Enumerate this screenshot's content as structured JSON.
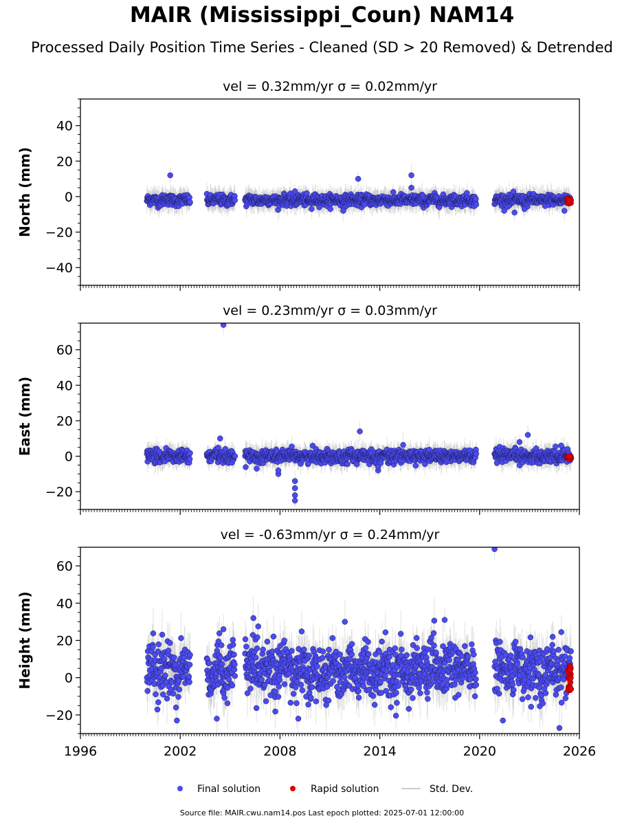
{
  "title": "MAIR (Mississippi_Coun) NAM14",
  "subtitle": "Processed Daily Position Time Series - Cleaned (SD > 20 Removed) & Detrended",
  "footer": "Source file: MAIR.cwu.nam14.pos  Last epoch plotted: 2025-07-01 12:00:00",
  "colors": {
    "final": "#4b4bef",
    "rapid": "#e00000",
    "std": "#aaaaaa"
  },
  "chart_data": [
    {
      "type": "scatter",
      "panel_title": "vel = 0.32mm/yr   σ = 0.02mm/yr",
      "ylabel": "North (mm)",
      "xlim": [
        1996,
        2026
      ],
      "ylim": [
        -50,
        55
      ],
      "yticks": [
        -40,
        -20,
        0,
        20,
        40
      ],
      "xticks": [
        1996,
        2002,
        2008,
        2014,
        2020,
        2026
      ],
      "show_xtick_labels": false,
      "coverage": [
        [
          2000.0,
          2002.6
        ],
        [
          2003.6,
          2005.3
        ],
        [
          2005.9,
          2019.8
        ],
        [
          2020.9,
          2025.5
        ]
      ],
      "noise_sd": 1.5,
      "noise_mean": -2,
      "outliers": [
        [
          2001.4,
          12
        ],
        [
          2012.7,
          10
        ],
        [
          2015.9,
          12
        ],
        [
          2015.9,
          5
        ],
        [
          2011.8,
          -8
        ],
        [
          2022.1,
          -9
        ],
        [
          2022.7,
          -7
        ],
        [
          2009.9,
          -7
        ],
        [
          2008.9,
          3
        ],
        [
          2025.1,
          -8
        ]
      ],
      "rapid": {
        "x_range": [
          2025.25,
          2025.5
        ],
        "y_range": [
          -4,
          -1
        ]
      }
    },
    {
      "type": "scatter",
      "panel_title": "vel = 0.23mm/yr   σ = 0.03mm/yr",
      "ylabel": "East (mm)",
      "xlim": [
        1996,
        2026
      ],
      "ylim": [
        -30,
        75
      ],
      "yticks": [
        -20,
        0,
        20,
        40,
        60
      ],
      "xticks": [
        1996,
        2002,
        2008,
        2014,
        2020,
        2026
      ],
      "show_xtick_labels": false,
      "coverage": [
        [
          2000.0,
          2002.6
        ],
        [
          2003.6,
          2005.3
        ],
        [
          2005.9,
          2019.8
        ],
        [
          2020.9,
          2025.5
        ]
      ],
      "noise_sd": 1.8,
      "noise_mean": 0,
      "outliers": [
        [
          2004.6,
          74
        ],
        [
          2004.4,
          10
        ],
        [
          2012.8,
          14
        ],
        [
          2022.4,
          8
        ],
        [
          2022.9,
          12
        ],
        [
          2008.9,
          -14
        ],
        [
          2008.9,
          -18
        ],
        [
          2008.9,
          -22
        ],
        [
          2008.9,
          -25
        ],
        [
          2007.9,
          -10
        ],
        [
          2007.9,
          -8
        ],
        [
          2006.6,
          -7
        ],
        [
          2013.9,
          -8
        ],
        [
          2013.9,
          -6
        ],
        [
          2024.9,
          6
        ]
      ],
      "rapid": {
        "x_range": [
          2025.25,
          2025.5
        ],
        "y_range": [
          -2,
          0
        ]
      }
    },
    {
      "type": "scatter",
      "panel_title": "vel = -0.63mm/yr   σ = 0.24mm/yr",
      "ylabel": "Height (mm)",
      "xlim": [
        1996,
        2026
      ],
      "ylim": [
        -30,
        70
      ],
      "yticks": [
        -20,
        0,
        20,
        40,
        60
      ],
      "xticks": [
        1996,
        2002,
        2008,
        2014,
        2020,
        2026
      ],
      "xtick_labels": [
        "1996",
        "2002",
        "2008",
        "2014",
        "2020",
        "2026"
      ],
      "show_xtick_labels": true,
      "coverage": [
        [
          2000.0,
          2002.6
        ],
        [
          2003.6,
          2005.3
        ],
        [
          2005.9,
          2019.8
        ],
        [
          2020.9,
          2025.5
        ]
      ],
      "noise_sd": 7,
      "noise_mean": 4,
      "outliers": [
        [
          2020.9,
          69
        ],
        [
          2006.4,
          32
        ],
        [
          2004.6,
          26
        ],
        [
          2011.9,
          30
        ],
        [
          2017.9,
          31
        ],
        [
          2024.8,
          -27
        ],
        [
          2004.2,
          -22
        ],
        [
          2009.1,
          -22
        ],
        [
          2001.8,
          -23
        ],
        [
          2021.4,
          -23
        ]
      ],
      "rapid": {
        "x_range": [
          2025.3,
          2025.5
        ],
        "y_range": [
          -7,
          7
        ]
      }
    }
  ],
  "legend": {
    "final": "Final solution",
    "rapid": "Rapid solution",
    "std": "Std. Dev."
  }
}
